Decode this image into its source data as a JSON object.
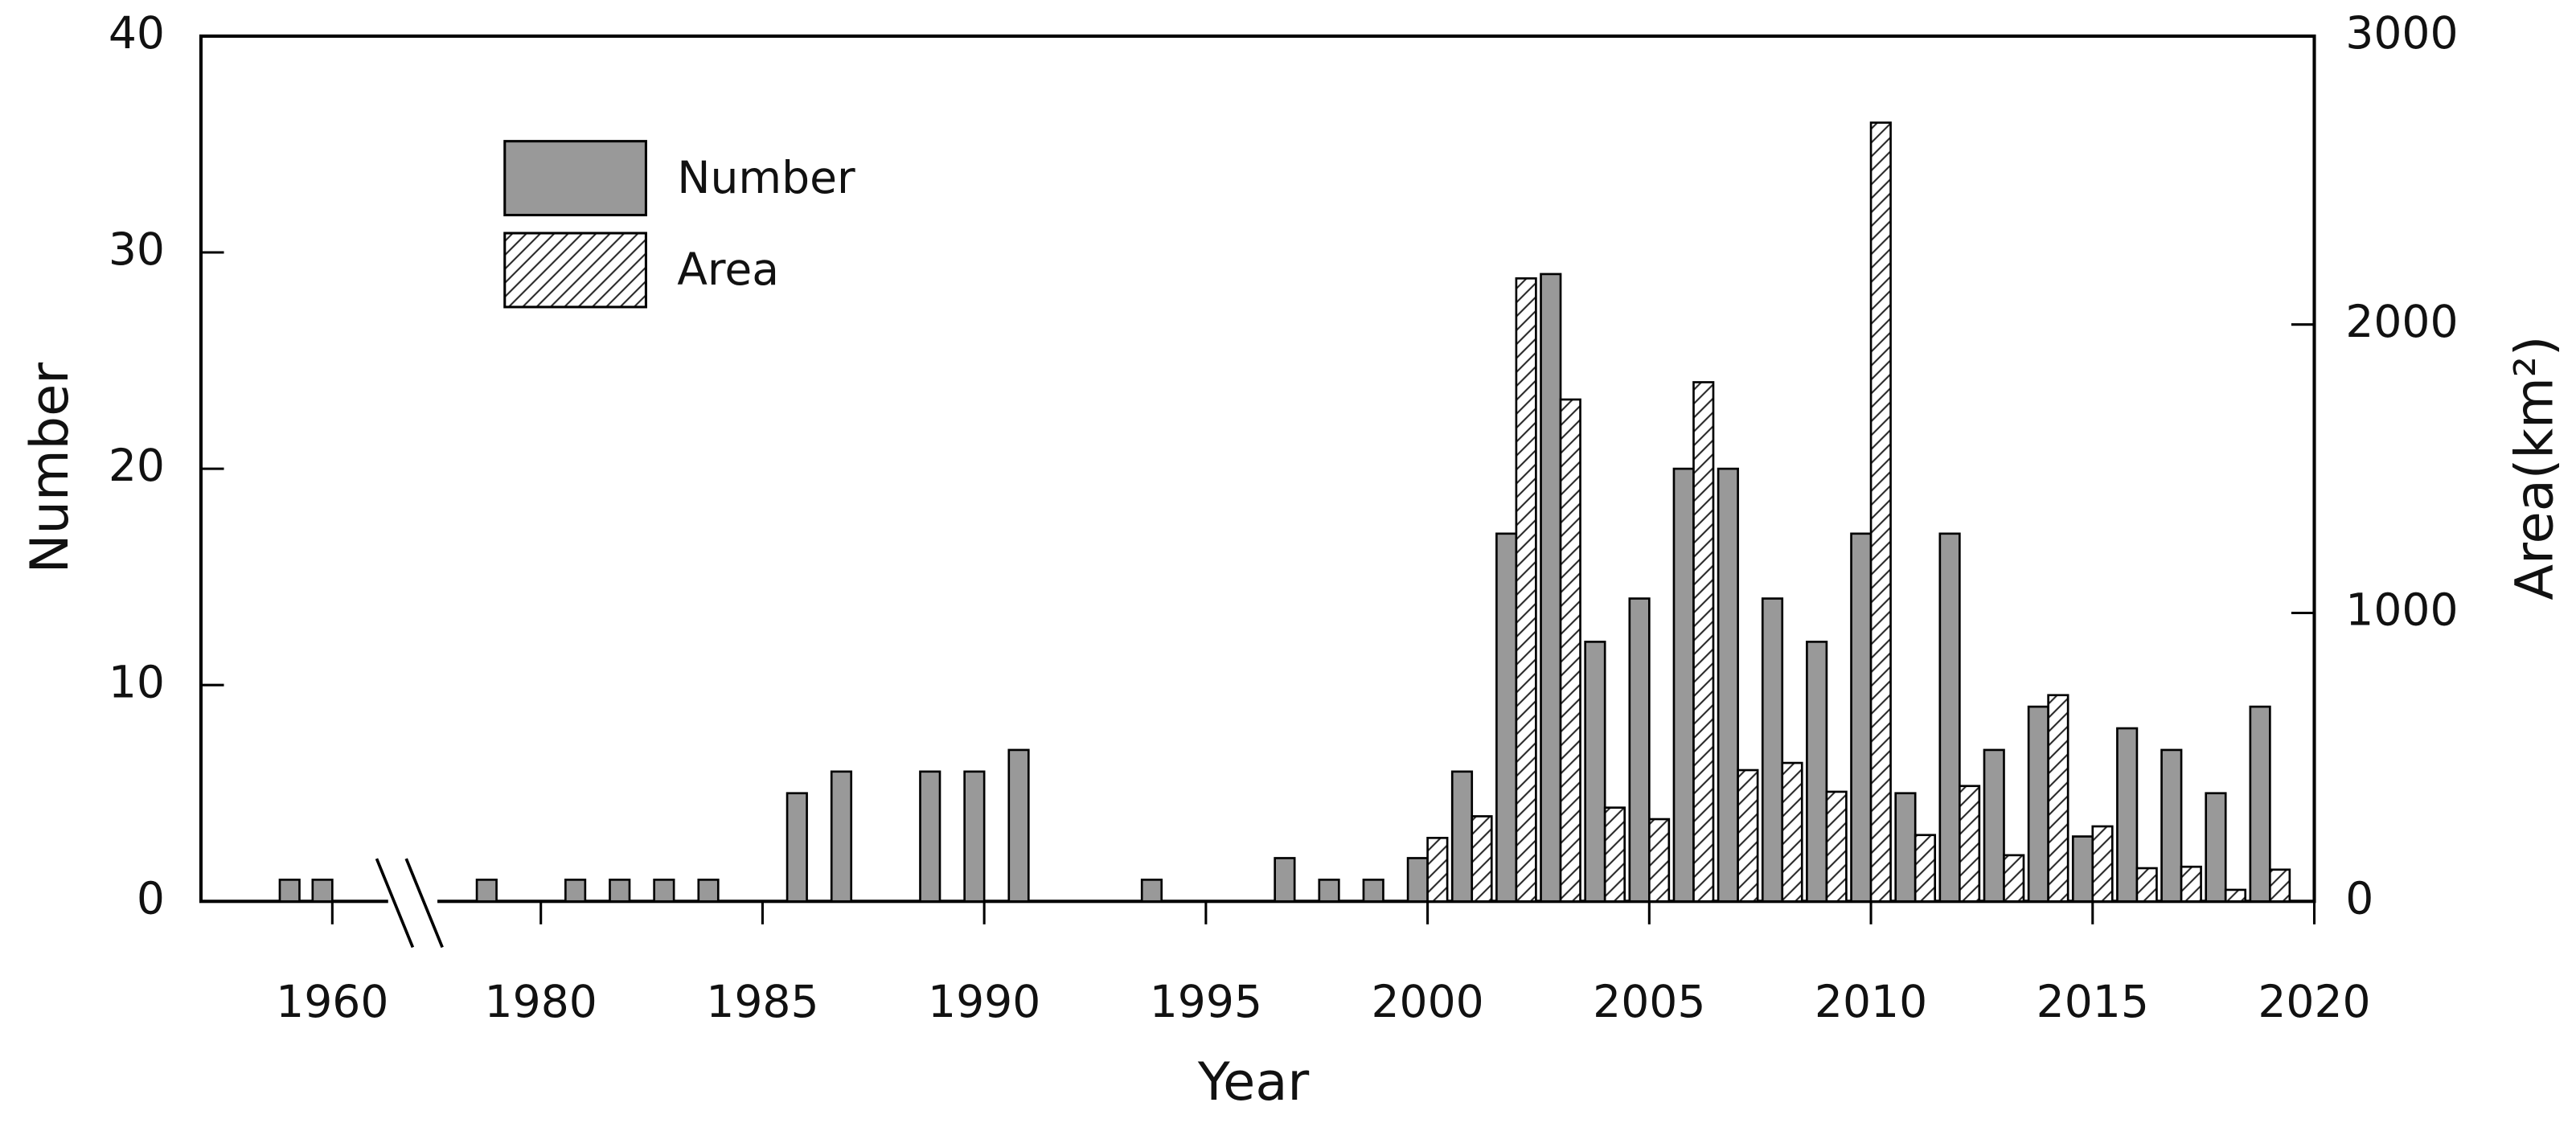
{
  "chart_data": {
    "type": "bar",
    "x_label": "Year",
    "y_label": "Number",
    "y2_label": "Area(km²)",
    "x": [
      1959,
      1960,
      1979,
      1981,
      1982,
      1983,
      1984,
      1986,
      1987,
      1989,
      1990,
      1991,
      1994,
      1997,
      1998,
      1999,
      2000,
      2001,
      2002,
      2003,
      2004,
      2005,
      2006,
      2007,
      2008,
      2009,
      2010,
      2011,
      2012,
      2013,
      2014,
      2015,
      2016,
      2017,
      2018,
      2019
    ],
    "series": [
      {
        "name": "Number",
        "color": "#999999",
        "values": [
          1,
          1,
          1,
          1,
          1,
          1,
          1,
          5,
          6,
          6,
          6,
          7,
          1,
          2,
          1,
          1,
          2,
          6,
          17,
          29,
          12,
          14,
          20,
          20,
          14,
          12,
          17,
          5,
          17,
          7,
          9,
          3,
          8,
          7,
          5,
          9
        ]
      },
      {
        "name": "Area",
        "color": "#ffffff",
        "hatch": true,
        "axis": "y2",
        "values": [
          null,
          null,
          null,
          null,
          null,
          null,
          null,
          null,
          null,
          null,
          null,
          null,
          null,
          null,
          null,
          null,
          220,
          295,
          2160,
          1740,
          325,
          285,
          1800,
          455,
          480,
          380,
          2700,
          230,
          400,
          160,
          715,
          260,
          115,
          120,
          40,
          110
        ]
      }
    ],
    "xlim": [
      1956,
      2020
    ],
    "xticks": [
      1960,
      1980,
      1985,
      1990,
      1995,
      2000,
      2005,
      2010,
      2015,
      2020
    ],
    "ylim": [
      0,
      40
    ],
    "yticks": [
      0,
      10,
      20,
      30,
      40
    ],
    "y2lim": [
      0,
      3000
    ],
    "y2ticks": [
      0,
      1000,
      2000,
      3000
    ],
    "legend": "upper left"
  }
}
